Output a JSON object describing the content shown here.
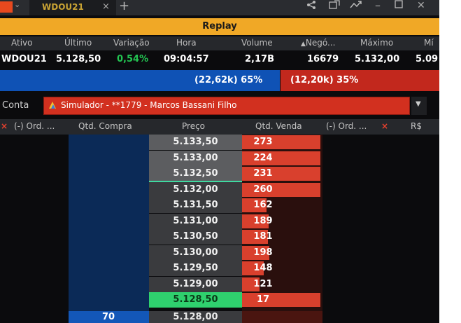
{
  "window": {
    "tab_title": "WDOU21",
    "tab_close": "×",
    "new_tab": "+",
    "controls": [
      "share-icon",
      "popout-icon",
      "trend-icon",
      "minimize-icon",
      "restore-icon",
      "close-icon"
    ]
  },
  "banner": {
    "title": "Replay",
    "color": "#f0a826"
  },
  "quote": {
    "headers": [
      "Ativo",
      "Último",
      "Variação",
      "Hora",
      "Volume",
      "Negó...",
      "Máximo",
      "Mí"
    ],
    "values": {
      "ativo": "WDOU21",
      "ultimo": "5.128,50",
      "variacao": "0,54%",
      "hora": "09:04:57",
      "volume": "2,17B",
      "negocios": "16679",
      "maximo": "5.132,00",
      "minimo": "5.09"
    }
  },
  "aggressor": {
    "buy_text": "(22,62k) 65%",
    "sell_text": "(12,20k) 35%",
    "buy_share": 0.65,
    "sell_share": 0.35,
    "buy_color": "#0f52b5",
    "sell_color": "#c2281d"
  },
  "account": {
    "label": "Conta",
    "value": "Simulador - **1779 - Marcos Bassani Filho"
  },
  "book": {
    "headers": {
      "close_left": "×",
      "ord_buy": "(-) Ord. ...",
      "qtd_compra": "Qtd. Compra",
      "preco": "Preço",
      "qtd_venda": "Qtd. Venda",
      "ord_sell": "(-) Ord. ...",
      "close_right": "×",
      "rs": "R$"
    },
    "asks": [
      {
        "price": "5.133,50",
        "qty": "273",
        "bar": 1.0
      },
      {
        "price": "5.133,00",
        "qty": "224",
        "bar": 1.0
      },
      {
        "price": "5.132,50",
        "qty": "231",
        "bar": 1.0
      },
      {
        "price": "5.132,00",
        "qty": "260",
        "bar": 1.0
      },
      {
        "price": "5.131,50",
        "qty": "162",
        "bar": 0.31
      },
      {
        "price": "5.131,00",
        "qty": "189",
        "bar": 0.34
      },
      {
        "price": "5.130,50",
        "qty": "181",
        "bar": 0.33
      },
      {
        "price": "5.130,00",
        "qty": "198",
        "bar": 0.35
      },
      {
        "price": "5.129,50",
        "qty": "148",
        "bar": 0.28
      },
      {
        "price": "5.129,00",
        "qty": "121",
        "bar": 0.22
      },
      {
        "price": "5.128,50",
        "qty": "17",
        "bar": 1.0
      }
    ],
    "bid": {
      "price": "5.128,00",
      "qty": "70"
    }
  }
}
